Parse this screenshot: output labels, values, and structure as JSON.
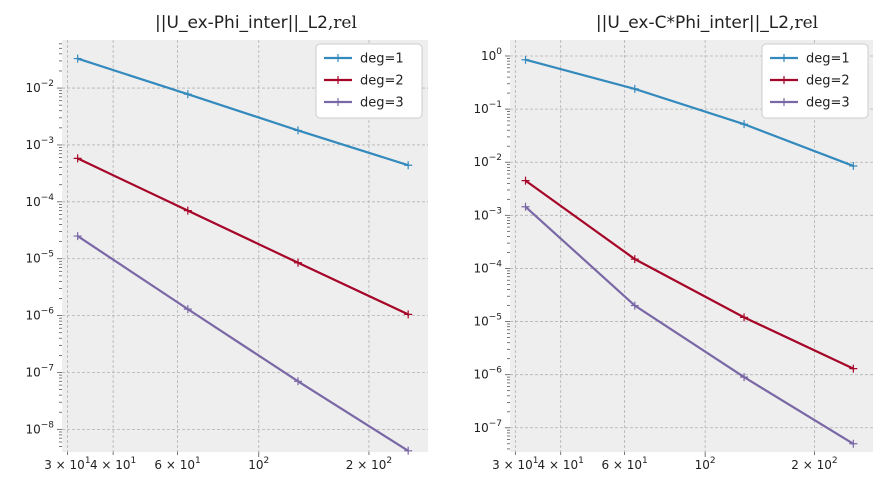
{
  "chart_data": [
    {
      "type": "line",
      "title": {
        "main": "||U_ex-Phi_inter||_L2",
        "suffix": ",rel"
      },
      "xscale": "log",
      "yscale": "log",
      "xlim": [
        29,
        290
      ],
      "ylim": [
        4e-09,
        0.07
      ],
      "x": [
        32,
        64,
        128,
        256
      ],
      "series": [
        {
          "name": "deg=1",
          "color": "#348abd",
          "values": [
            0.033,
            0.0078,
            0.0018,
            0.00044
          ]
        },
        {
          "name": "deg=2",
          "color": "#a60628",
          "values": [
            0.00058,
            7e-05,
            8.5e-06,
            1.05e-06
          ]
        },
        {
          "name": "deg=3",
          "color": "#7a68a6",
          "values": [
            2.5e-05,
            1.3e-06,
            7e-08,
            4.2e-09
          ]
        }
      ],
      "xticks": [
        {
          "value": 30,
          "base": "3 × 10",
          "exp": "1"
        },
        {
          "value": 40,
          "base": "4 × 10",
          "exp": "1"
        },
        {
          "value": 60,
          "base": "6 × 10",
          "exp": "1"
        },
        {
          "value": 100,
          "base": "10",
          "exp": "2"
        },
        {
          "value": 200,
          "base": "2 × 10",
          "exp": "2"
        }
      ],
      "yticks": [
        {
          "value": 1e-08,
          "base": "10",
          "exp": "−8"
        },
        {
          "value": 1e-07,
          "base": "10",
          "exp": "−7"
        },
        {
          "value": 1e-06,
          "base": "10",
          "exp": "−6"
        },
        {
          "value": 1e-05,
          "base": "10",
          "exp": "−5"
        },
        {
          "value": 0.0001,
          "base": "10",
          "exp": "−4"
        },
        {
          "value": 0.001,
          "base": "10",
          "exp": "−3"
        },
        {
          "value": 0.01,
          "base": "10",
          "exp": "−2"
        }
      ],
      "grid": true,
      "legend": "top-right"
    },
    {
      "type": "line",
      "title": {
        "main": "||U_ex-C*Phi_inter||_L2",
        "suffix": ",rel"
      },
      "xscale": "log",
      "yscale": "log",
      "xlim": [
        29,
        290
      ],
      "ylim": [
        3.5e-08,
        2
      ],
      "x": [
        32,
        64,
        128,
        256
      ],
      "series": [
        {
          "name": "deg=1",
          "color": "#348abd",
          "values": [
            0.85,
            0.24,
            0.052,
            0.0085
          ]
        },
        {
          "name": "deg=2",
          "color": "#a60628",
          "values": [
            0.0045,
            0.00015,
            1.2e-05,
            1.3e-06
          ]
        },
        {
          "name": "deg=3",
          "color": "#7a68a6",
          "values": [
            0.00145,
            2e-05,
            9e-07,
            5e-08
          ]
        }
      ],
      "xticks": [
        {
          "value": 30,
          "base": "3 × 10",
          "exp": "1"
        },
        {
          "value": 40,
          "base": "4 × 10",
          "exp": "1"
        },
        {
          "value": 60,
          "base": "6 × 10",
          "exp": "1"
        },
        {
          "value": 100,
          "base": "10",
          "exp": "2"
        },
        {
          "value": 200,
          "base": "2 × 10",
          "exp": "2"
        }
      ],
      "yticks": [
        {
          "value": 1e-07,
          "base": "10",
          "exp": "−7"
        },
        {
          "value": 1e-06,
          "base": "10",
          "exp": "−6"
        },
        {
          "value": 1e-05,
          "base": "10",
          "exp": "−5"
        },
        {
          "value": 0.0001,
          "base": "10",
          "exp": "−4"
        },
        {
          "value": 0.001,
          "base": "10",
          "exp": "−3"
        },
        {
          "value": 0.01,
          "base": "10",
          "exp": "−2"
        },
        {
          "value": 0.1,
          "base": "10",
          "exp": "−1"
        },
        {
          "value": 1,
          "base": "10",
          "exp": "0"
        }
      ],
      "grid": true,
      "legend": "top-right"
    }
  ]
}
